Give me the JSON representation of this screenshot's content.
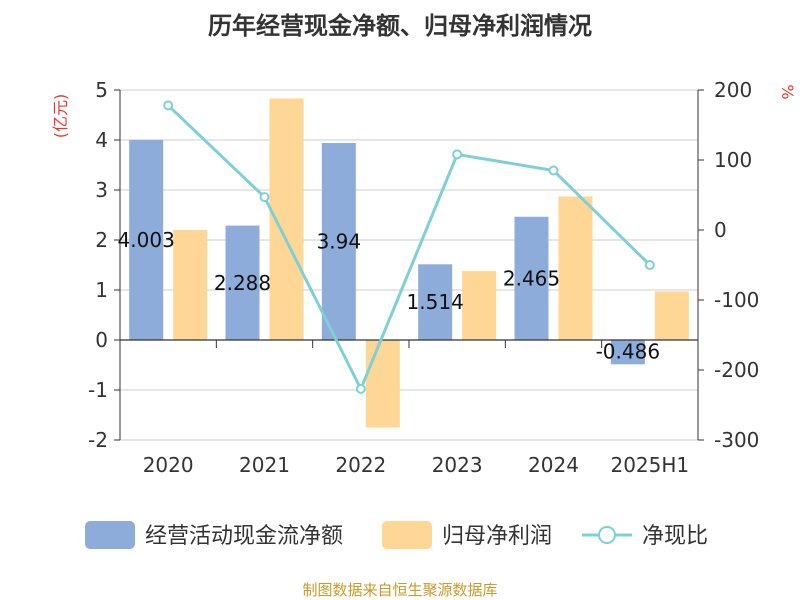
{
  "chart_data": {
    "type": "bar",
    "title": "历年经营现金净额、归母净利润情况",
    "left_unit": "(亿元)",
    "right_unit": "%",
    "categories": [
      "2020",
      "2021",
      "2022",
      "2023",
      "2024",
      "2025H1"
    ],
    "series": [
      {
        "name": "经营活动现金流净额",
        "type": "bar",
        "axis": "left",
        "values": [
          4.003,
          2.288,
          3.94,
          1.514,
          2.465,
          -0.486
        ],
        "labels": [
          "4.003",
          "2.288",
          "3.94",
          "1.514",
          "2.465",
          "-0.486"
        ]
      },
      {
        "name": "归母净利润",
        "type": "bar",
        "axis": "left",
        "values": [
          2.2,
          4.83,
          -1.75,
          1.38,
          2.87,
          0.97
        ]
      },
      {
        "name": "净现比",
        "type": "line",
        "axis": "right",
        "values": [
          178,
          47,
          -227,
          108,
          85,
          -50
        ]
      }
    ],
    "ylim_left": [
      -2,
      5
    ],
    "yticks_left": [
      "5",
      "4",
      "3",
      "2",
      "1",
      "0",
      "-1",
      "-2"
    ],
    "ylim_right": [
      -300,
      200
    ],
    "yticks_right": [
      "200",
      "100",
      "0",
      "-100",
      "-200",
      "-300"
    ],
    "grid": true,
    "legend_position": "bottom",
    "colors": {
      "cash_flow": "#8eacda",
      "net_profit": "#fed695",
      "ratio": "#7fd0d6"
    }
  },
  "source": "制图数据来自恒生聚源数据库"
}
